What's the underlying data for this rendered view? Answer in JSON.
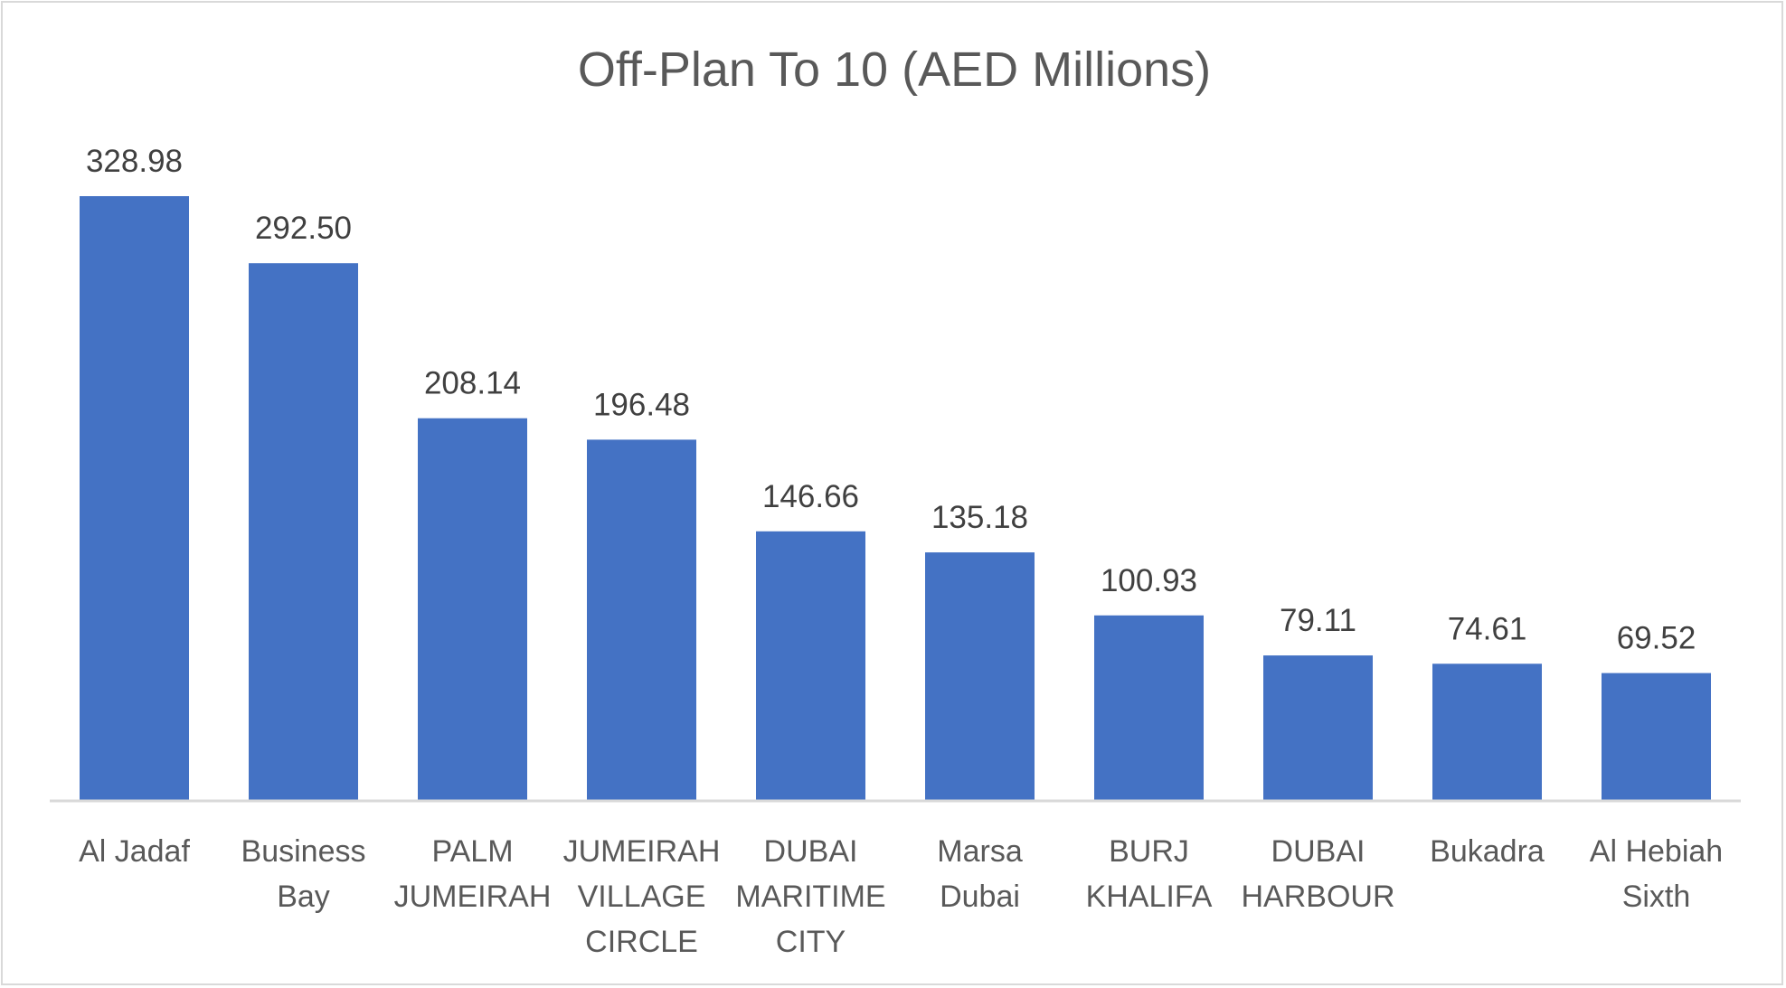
{
  "chart_data": {
    "type": "bar",
    "title": "Off-Plan To 10 (AED Millions)",
    "xlabel": "",
    "ylabel": "",
    "categories": [
      [
        "Al Jadaf"
      ],
      [
        "Business",
        "Bay"
      ],
      [
        "PALM",
        "JUMEIRAH"
      ],
      [
        "JUMEIRAH",
        "VILLAGE",
        "CIRCLE"
      ],
      [
        "DUBAI",
        "MARITIME",
        "CITY"
      ],
      [
        "Marsa",
        "Dubai"
      ],
      [
        "BURJ",
        "KHALIFA"
      ],
      [
        "DUBAI",
        "HARBOUR"
      ],
      [
        "Bukadra"
      ],
      [
        "Al Hebiah",
        "Sixth"
      ]
    ],
    "values": [
      328.98,
      292.5,
      208.14,
      196.48,
      146.66,
      135.18,
      100.93,
      79.11,
      74.61,
      69.52
    ],
    "data_labels": [
      "328.98",
      "292.50",
      "208.14",
      "196.48",
      "146.66",
      "135.18",
      "100.93",
      "79.11",
      "74.61",
      "69.52"
    ],
    "ylim": [
      0,
      328.98
    ],
    "grid": false,
    "legend": "none",
    "colors": {
      "bar": "#4472c4",
      "axis": "#d9d9d9",
      "title": "#595959",
      "label": "#404040"
    }
  }
}
